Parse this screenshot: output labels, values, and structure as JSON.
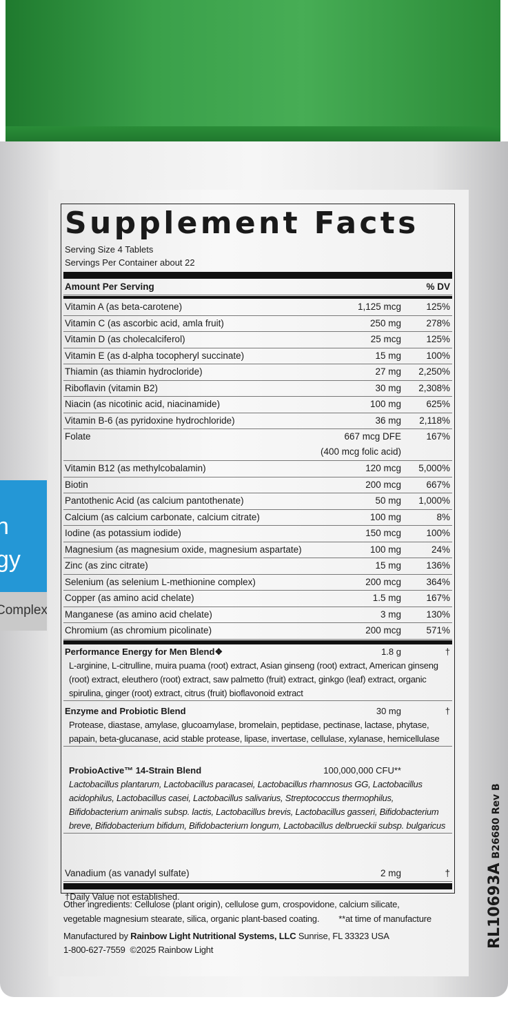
{
  "colors": {
    "cap": "#3aa04a",
    "accent_blue": "#2497d6"
  },
  "side_label": {
    "line1": "n",
    "line2": "gy",
    "complex": "Complex"
  },
  "facts": {
    "title": "Supplement Facts",
    "serving_size": "Serving Size 4 Tablets",
    "servings_per_container": "Servings Per Container about 22",
    "header_amount": "Amount Per Serving",
    "header_dv": "% DV",
    "nutrients": [
      {
        "name": "Vitamin A (as beta-carotene)",
        "amount": "1,125 mcg",
        "dv": "125%"
      },
      {
        "name": "Vitamin C (as ascorbic acid, amla fruit)",
        "amount": "250 mg",
        "dv": "278%"
      },
      {
        "name": "Vitamin D (as cholecalciferol)",
        "amount": "25 mcg",
        "dv": "125%"
      },
      {
        "name": "Vitamin E (as d-alpha tocopheryl succinate)",
        "amount": "15 mg",
        "dv": "100%"
      },
      {
        "name": "Thiamin (as thiamin hydrocloride)",
        "amount": "27 mg",
        "dv": "2,250%"
      },
      {
        "name": "Riboflavin (vitamin B2)",
        "amount": "30 mg",
        "dv": "2,308%"
      },
      {
        "name": "Niacin (as nicotinic acid, niacinamide)",
        "amount": "100 mg",
        "dv": "625%"
      },
      {
        "name": "Vitamin B-6 (as pyridoxine hydrochloride)",
        "amount": "36 mg",
        "dv": "2,118%"
      },
      {
        "name": "Folate",
        "amount": "667 mcg DFE",
        "amount2": "(400 mcg folic acid)",
        "dv": "167%"
      },
      {
        "name": "Vitamin B12 (as methylcobalamin)",
        "amount": "120 mcg",
        "dv": "5,000%"
      },
      {
        "name": "Biotin",
        "amount": "200 mcg",
        "dv": "667%"
      },
      {
        "name": "Pantothenic Acid (as calcium pantothenate)",
        "amount": "50 mg",
        "dv": "1,000%"
      },
      {
        "name": "Calcium (as calcium carbonate, calcium citrate)",
        "amount": "100 mg",
        "dv": "8%"
      },
      {
        "name": "Iodine (as potassium iodide)",
        "amount": "150 mcg",
        "dv": "100%"
      },
      {
        "name": "Magnesium (as magnesium oxide, magnesium aspartate)",
        "amount": "100 mg",
        "dv": "24%"
      },
      {
        "name": "Zinc (as zinc citrate)",
        "amount": "15 mg",
        "dv": "136%"
      },
      {
        "name": "Selenium (as selenium L-methionine complex)",
        "amount": "200 mcg",
        "dv": "364%"
      },
      {
        "name": "Copper (as amino acid chelate)",
        "amount": "1.5 mg",
        "dv": "167%"
      },
      {
        "name": "Manganese (as amino acid chelate)",
        "amount": "3 mg",
        "dv": "130%"
      },
      {
        "name": "Chromium (as chromium picolinate)",
        "amount": "200 mcg",
        "dv": "571%"
      }
    ],
    "blends": [
      {
        "name": "Performance Energy for Men Blend❖",
        "amount": "1.8 g",
        "dv": "†",
        "ingredients": "L-arginine, L-citrulline, muira puama (root) extract, Asian ginseng (root) extract, American ginseng (root) extract, eleuthero (root) extract, saw palmetto (fruit) extract, ginkgo (leaf) extract, organic spirulina, ginger (root) extract, citrus (fruit) bioflavonoid extract"
      },
      {
        "name": "Enzyme and Probiotic Blend",
        "amount": "30 mg",
        "dv": "†",
        "ingredients": "Protease, diastase, amylase, glucoamylase, bromelain, peptidase, pectinase, lactase, phytase, papain, beta-glucanase, acid stable protease, lipase, invertase, cellulase, xylanase, hemicellulase"
      },
      {
        "name": "ProbioActive™ 14-Strain Blend",
        "amount": "100,000,000 CFU**",
        "dv": "",
        "ingredients": "Lactobacillus plantarum, Lactobacillus paracasei, Lactobacillus rhamnosus GG, Lactobacillus acidophilus, Lactobacillus casei, Lactobacillus salivarius, Streptococcus thermophilus, Bifidobacterium animalis subsp. lactis, Lactobacillus brevis, Lactobacillus gasseri, Bifidobacterium breve, Bifidobacterium bifidum, Bifidobacterium longum, Lactobacillus delbrueckii subsp. bulgaricus"
      }
    ],
    "vanadium": {
      "name": "Vanadium (as vanadyl sulfate)",
      "amount": "2 mg",
      "dv": "†"
    },
    "footnote": "†Daily Value not established."
  },
  "other_ingredients": "Other ingredients: Cellulose (plant origin), cellulose gum, crospovidone, calcium silicate,",
  "other_ingredients_2": "vegetable magnesium stearate, silica, organic plant-based coating.",
  "cfu_note": "**at time of manufacture",
  "manufacturer": {
    "prefix": "Manufactured by",
    "name": "Rainbow Light Nutritional Systems, LLC",
    "location": "Sunrise, FL 33323 USA",
    "phone": "1-800-627-7559",
    "copyright": "©2025 Rainbow Light"
  },
  "codes": {
    "main": "RL10693A",
    "rev": "B26680 Rev B"
  }
}
